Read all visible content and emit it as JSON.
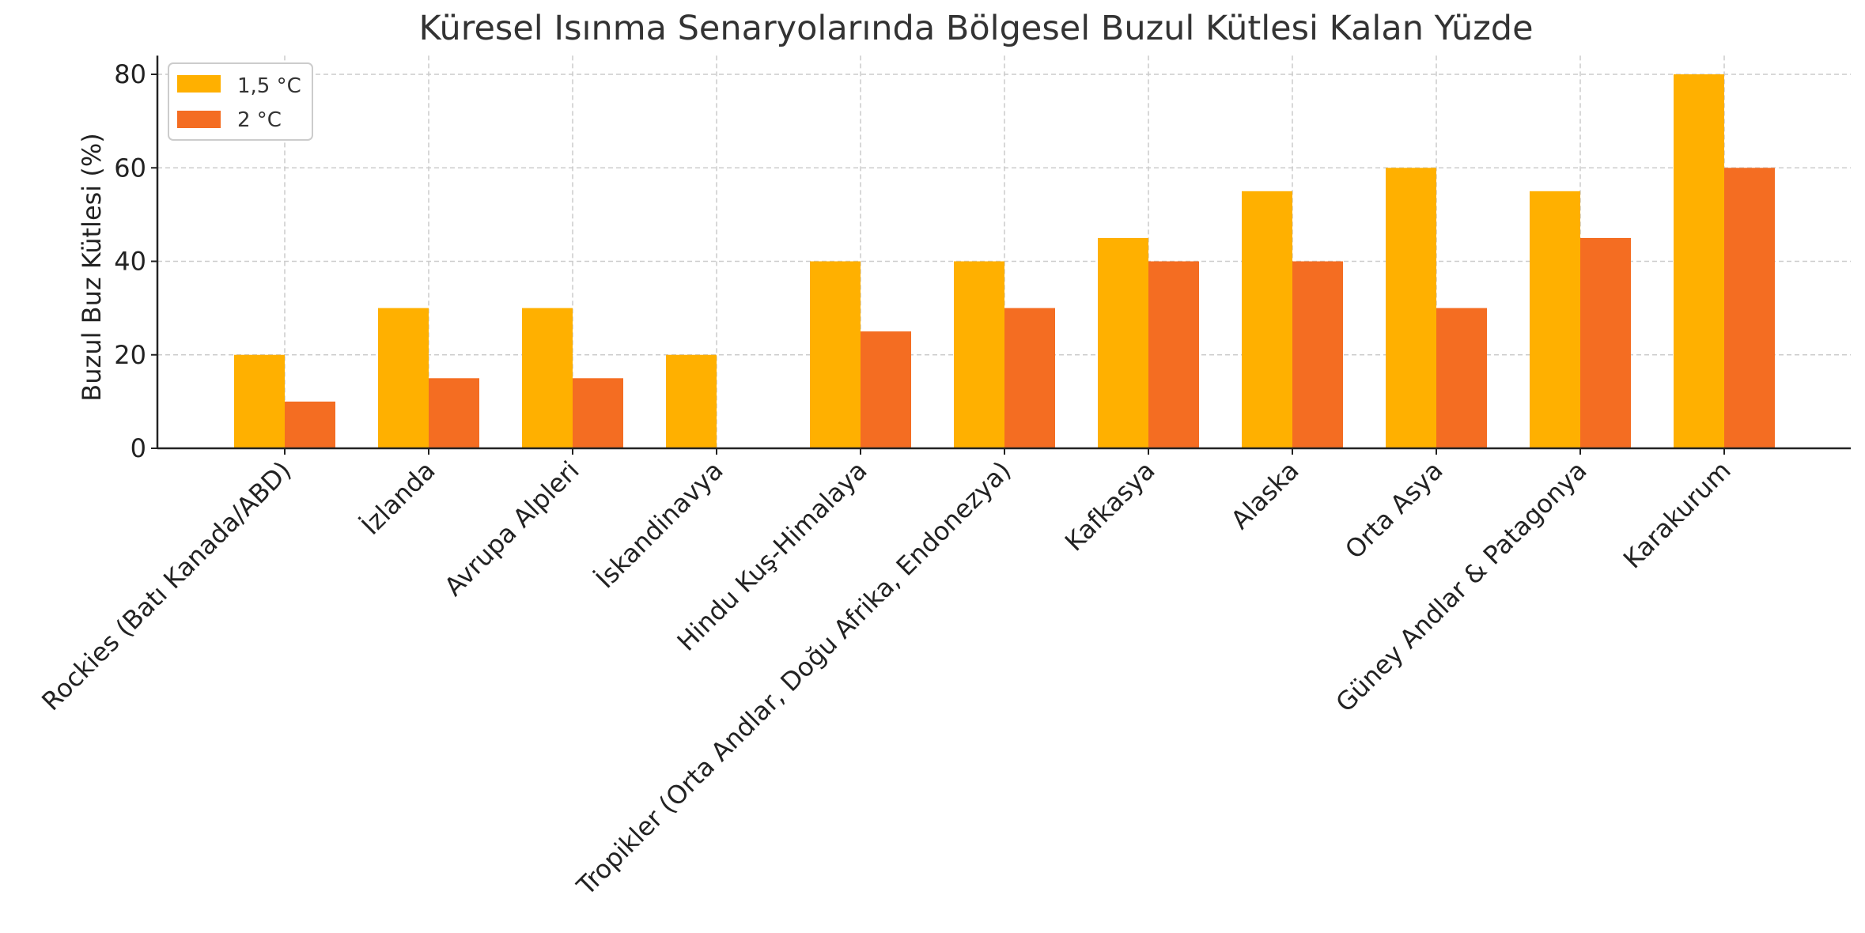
{
  "chart_data": {
    "type": "bar",
    "title": "Küresel Isınma Senaryolarında Bölgesel Buzul Kütlesi Kalan Yüzde",
    "xlabel": "",
    "ylabel": "Buzul Buz Kütlesi (%)",
    "ylim": [
      0,
      84
    ],
    "yticks": [
      0,
      20,
      40,
      60,
      80
    ],
    "grid": true,
    "legend_position": "top-left",
    "categories": [
      "Rockies (Batı Kanada/ABD)",
      "İzlanda",
      "Avrupa Alpleri",
      "İskandinavya",
      "Hindu Kuş-Himalaya",
      "Tropikler (Orta Andlar, Doğu Afrika, Endonezya)",
      "Kafkasya",
      "Alaska",
      "Orta Asya",
      "Güney Andlar & Patagonya",
      "Karakurum"
    ],
    "series": [
      {
        "name": "1,5 °C",
        "color": "#FFB000",
        "values": [
          20,
          30,
          30,
          20,
          40,
          40,
          45,
          55,
          60,
          55,
          80
        ]
      },
      {
        "name": "2 °C",
        "color": "#F46D22",
        "values": [
          10,
          15,
          15,
          0,
          25,
          30,
          40,
          40,
          30,
          45,
          60
        ]
      }
    ]
  }
}
